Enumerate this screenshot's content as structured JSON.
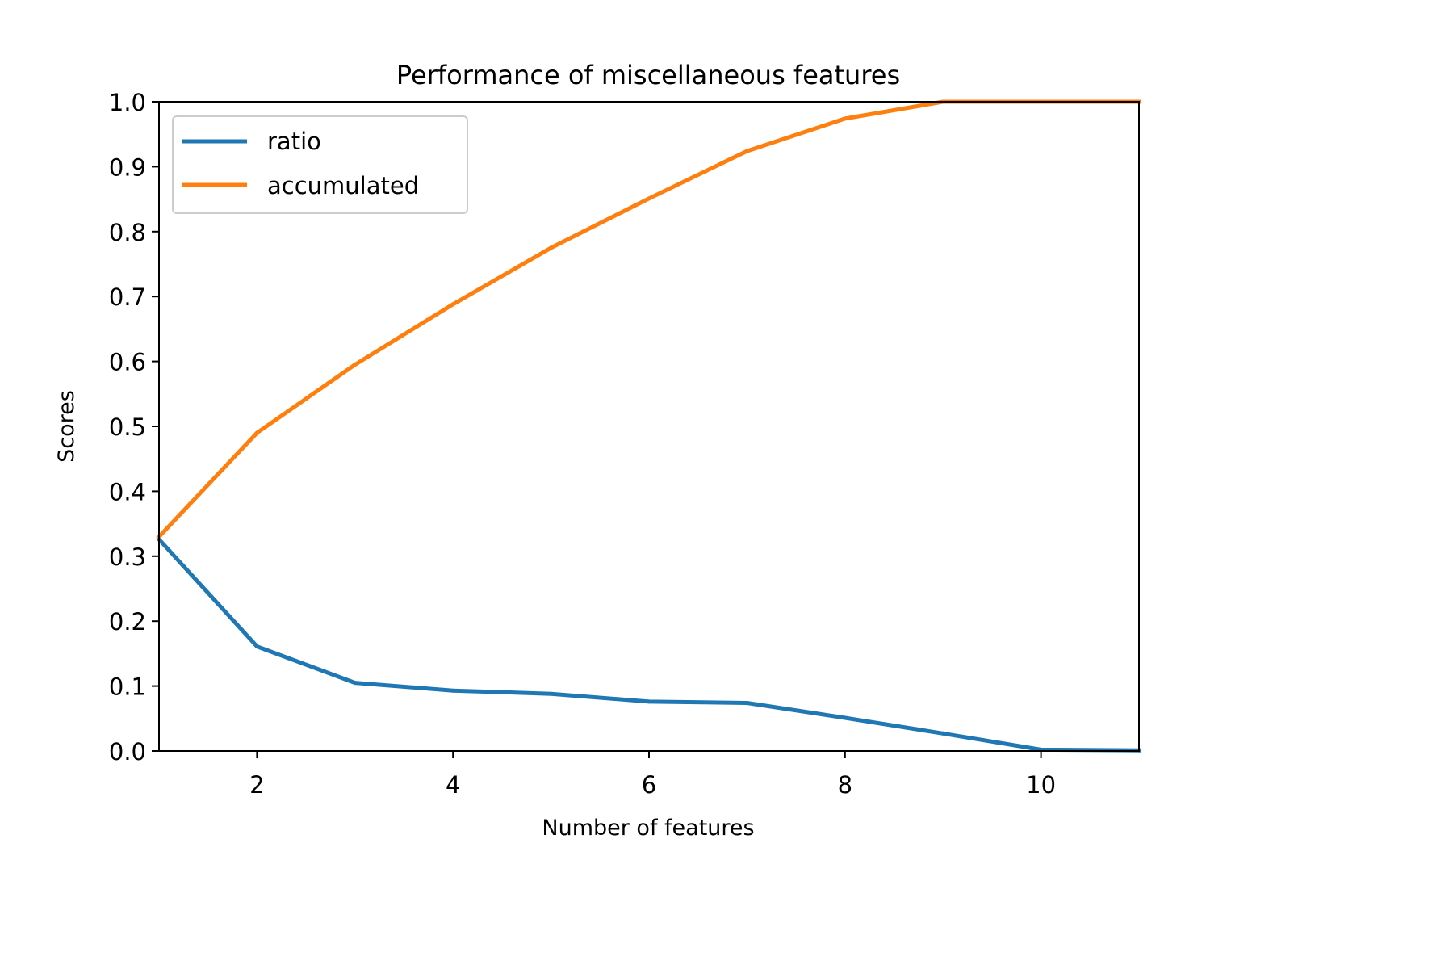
{
  "chart_data": {
    "type": "line",
    "title": "Performance of miscellaneous features",
    "xlabel": "Number of features",
    "ylabel": "Scores",
    "xlim": [
      1,
      11
    ],
    "ylim": [
      0.0,
      1.0
    ],
    "xticks": [
      2,
      4,
      6,
      8,
      10
    ],
    "yticks": [
      0.0,
      0.1,
      0.2,
      0.3,
      0.4,
      0.5,
      0.6,
      0.7,
      0.8,
      0.9,
      1.0
    ],
    "grid": false,
    "legend_position": "top-left",
    "x": [
      1,
      2,
      3,
      4,
      5,
      6,
      7,
      8,
      9,
      10,
      11
    ],
    "series": [
      {
        "name": "ratio",
        "color": "#1f77b4",
        "values": [
          0.326,
          0.161,
          0.105,
          0.093,
          0.088,
          0.076,
          0.074,
          0.051,
          0.027,
          0.002,
          0.001
        ]
      },
      {
        "name": "accumulated",
        "color": "#ff7f0e",
        "values": [
          0.33,
          0.49,
          0.595,
          0.688,
          0.775,
          0.851,
          0.924,
          0.974,
          1.0,
          1.0,
          1.0
        ]
      }
    ]
  }
}
